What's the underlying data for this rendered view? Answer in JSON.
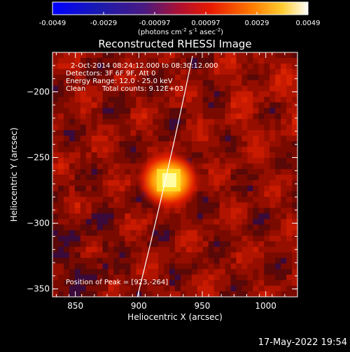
{
  "colorbar": {
    "ticks": [
      "-0.0049",
      "-0.0029",
      "-0.00097",
      "0.00097",
      "0.0029",
      "0.0049"
    ],
    "units_main": "(photons cm",
    "units_exp1": "-2",
    "units_mid1": " s",
    "units_exp2": "-1",
    "units_mid2": " asec",
    "units_exp3": "-2",
    "units_close": ")"
  },
  "plot": {
    "title": "Reconstructed RHESSI Image",
    "xlabel": "Heliocentric X (arcsec)",
    "ylabel": "Heliocentric Y (arcsec)",
    "x_ticks": [
      "850",
      "900",
      "950",
      "1000"
    ],
    "y_ticks": [
      "-200",
      "-250",
      "-300",
      "-350"
    ],
    "xlim": [
      832,
      1025
    ],
    "ylim": [
      -356,
      -170
    ]
  },
  "annotations": {
    "line1": "2-Oct-2014 08:24:12.000 to 08:30:12.000",
    "line2": "Detectors: 3F 6F 9F, Att 0",
    "line3": "Energy Range: 12.0 - 25.0 keV",
    "line4_a": "Clean",
    "line4_b": "Total counts: 9.12E+03",
    "peak": "Position of Peak = [923,-264]"
  },
  "footer": {
    "date": "17-May-2022 19:54"
  },
  "colors": {
    "colorbar_stops": [
      "#0000ff",
      "#2020b0",
      "#6a1a7a",
      "#c81020",
      "#ff3000",
      "#ff9000",
      "#ffe060",
      "#ffffff"
    ],
    "limb_line": "#ffffff"
  }
}
